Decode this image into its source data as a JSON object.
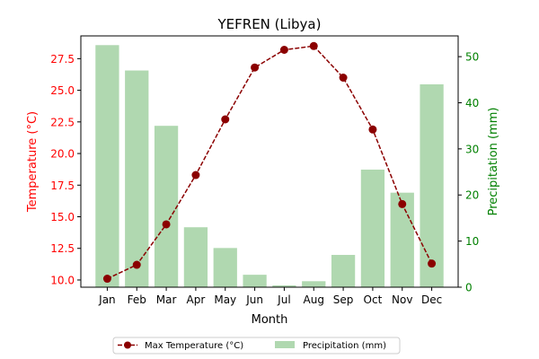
{
  "chart_data": {
    "type": "bar+line",
    "title": "YEFREN (Libya)",
    "xlabel": "Month",
    "ylabel_left": "Temperature (°C)",
    "ylabel_right": "Precipitation (mm)",
    "categories": [
      "Jan",
      "Feb",
      "Mar",
      "Apr",
      "May",
      "Jun",
      "Jul",
      "Aug",
      "Sep",
      "Oct",
      "Nov",
      "Dec"
    ],
    "series": [
      {
        "name": "Max Temperature (°C)",
        "type": "line",
        "axis": "left",
        "color": "#8b0000",
        "values": [
          10.1,
          11.2,
          14.4,
          18.3,
          22.7,
          26.8,
          28.2,
          28.5,
          26.0,
          21.9,
          16.0,
          11.3
        ]
      },
      {
        "name": "Precipitation (mm)",
        "type": "bar",
        "axis": "right",
        "color": "#b0d8b0",
        "values": [
          52.5,
          47.0,
          35.0,
          13.0,
          8.5,
          2.7,
          0.4,
          1.3,
          7.0,
          25.5,
          20.5,
          44.0
        ]
      }
    ],
    "ylim_left": [
      9.43,
      29.3
    ],
    "ylim_right": [
      0,
      54.5
    ],
    "yticks_left": [
      "10.0",
      "12.5",
      "15.0",
      "17.5",
      "20.0",
      "22.5",
      "25.0",
      "27.5"
    ],
    "yticks_right": [
      "0",
      "10",
      "20",
      "30",
      "40",
      "50"
    ],
    "left_axis_color": "#ff0000",
    "right_axis_color": "#008000",
    "legend_position": "bottom-center",
    "grid": false
  }
}
